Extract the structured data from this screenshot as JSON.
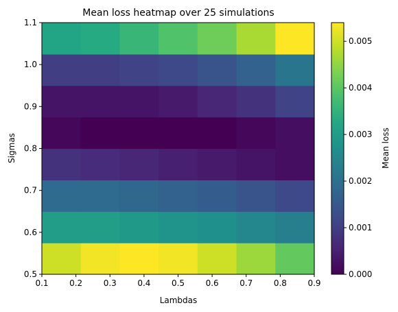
{
  "chart_data": {
    "type": "heatmap",
    "title": "Mean loss heatmap over 25 simulations",
    "xlabel": "Lambdas",
    "ylabel": "Sigmas",
    "colorbar_label": "Mean loss",
    "colormap": "viridis",
    "xlim": [
      0.1,
      0.9
    ],
    "ylim": [
      0.5,
      1.1
    ],
    "x_ticks": [
      "0.1",
      "0.2",
      "0.3",
      "0.4",
      "0.5",
      "0.6",
      "0.7",
      "0.8",
      "0.9"
    ],
    "y_ticks": [
      "0.5",
      "0.6",
      "0.7",
      "0.8",
      "0.9",
      "1.0",
      "1.1"
    ],
    "color_range": [
      0.0,
      0.0054
    ],
    "colorbar_ticks": [
      "0.000",
      "0.001",
      "0.002",
      "0.003",
      "0.004",
      "0.005"
    ],
    "n_cols": 7,
    "n_rows": 8,
    "values": [
      [
        0.005,
        0.0053,
        0.0054,
        0.0053,
        0.005,
        0.0046,
        0.0041
      ],
      [
        0.003,
        0.003,
        0.0029,
        0.0028,
        0.0027,
        0.0025,
        0.0023
      ],
      [
        0.0019,
        0.0019,
        0.0018,
        0.0017,
        0.0016,
        0.0014,
        0.0012
      ],
      [
        0.0008,
        0.0007,
        0.0006,
        0.0005,
        0.0004,
        0.0003,
        0.0002
      ],
      [
        0.0001,
        0.0,
        0.0,
        0.0,
        0.0,
        0.0001,
        0.0002
      ],
      [
        0.0003,
        0.0003,
        0.0003,
        0.0004,
        0.0006,
        0.0008,
        0.0011
      ],
      [
        0.001,
        0.001,
        0.0011,
        0.0012,
        0.0014,
        0.0017,
        0.0021
      ],
      [
        0.0032,
        0.0033,
        0.0036,
        0.0039,
        0.0042,
        0.0047,
        0.0054
      ]
    ]
  }
}
